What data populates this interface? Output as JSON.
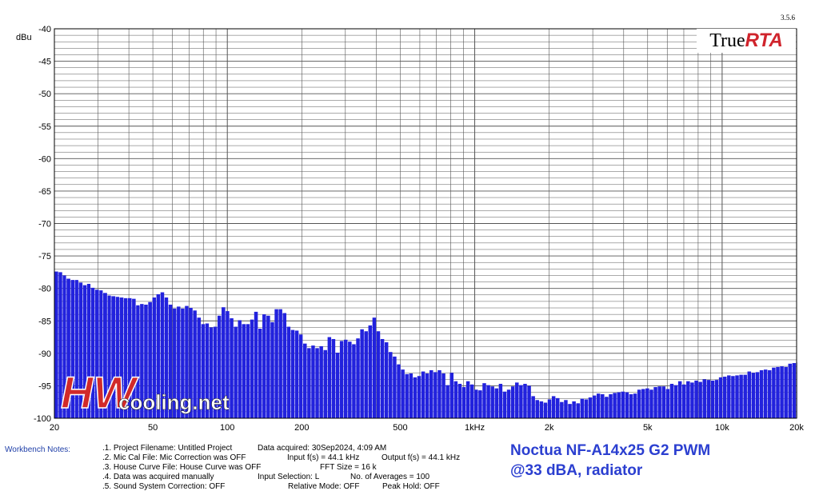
{
  "app": {
    "version": "3.5.6",
    "brand_true": "True",
    "brand_rta": "RTA"
  },
  "watermark": {
    "text_hw": "HW",
    "text_site": "cooling.net"
  },
  "headline": {
    "line1": "Noctua NF-A14x25 G2 PWM",
    "line2": "@33 dBA, radiator"
  },
  "workbench": {
    "label": "Workbench Notes:",
    "lines": [
      {
        "left": ".1. Project Filename: Untitled Project",
        "mid": "Data acquired: 30Sep2024, 4:09 AM",
        "right": ""
      },
      {
        "left": ".2. Mic Cal File: Mic Correction was OFF",
        "mid": "Input f(s) = 44.1 kHz",
        "right": "Output f(s) = 44.1 kHz"
      },
      {
        "left": ".3. House Curve File: House Curve was OFF",
        "mid": "FFT Size = 16 k",
        "right": ""
      },
      {
        "left": ".4. Data was acquired manually",
        "mid": "Input Selection: L",
        "right": "No. of Averages = 100"
      },
      {
        "left": ".5. Sound System Correction: OFF",
        "mid": "Relative Mode:  OFF",
        "right": "Peak Hold: OFF"
      }
    ]
  },
  "colors": {
    "bars": "#2222dd",
    "grid": "#555555",
    "headline": "#2b3fd0",
    "workbench_label": "#1f3fa8",
    "brand_rta": "#d0242c"
  },
  "chart_data": {
    "type": "bar",
    "ylabel": "dBu",
    "xlabel": "",
    "x_scale": "log",
    "xlim": [
      20,
      20000
    ],
    "ylim": [
      -100,
      -40
    ],
    "grid": true,
    "y_ticks": [
      "-40",
      "-45",
      "-50",
      "-55",
      "-60",
      "-65",
      "-70",
      "-75",
      "-80",
      "-85",
      "-90",
      "-95",
      "-100"
    ],
    "x_tick_labels": [
      {
        "f": 20,
        "label": "20"
      },
      {
        "f": 50,
        "label": "50"
      },
      {
        "f": 100,
        "label": "100"
      },
      {
        "f": 200,
        "label": "200"
      },
      {
        "f": 500,
        "label": "500"
      },
      {
        "f": 1000,
        "label": "1kHz"
      },
      {
        "f": 2000,
        "label": "2k"
      },
      {
        "f": 5000,
        "label": "5k"
      },
      {
        "f": 10000,
        "label": "10k"
      },
      {
        "f": 20000,
        "label": "20k"
      }
    ],
    "points": [
      [
        20.0,
        -77.4
      ],
      [
        20.8,
        -77.5
      ],
      [
        21.6,
        -78.0
      ],
      [
        22.4,
        -78.5
      ],
      [
        23.3,
        -78.7
      ],
      [
        24.2,
        -78.7
      ],
      [
        25.1,
        -79.1
      ],
      [
        26.1,
        -79.5
      ],
      [
        27.1,
        -79.3
      ],
      [
        28.1,
        -79.9
      ],
      [
        29.2,
        -80.2
      ],
      [
        30.4,
        -80.3
      ],
      [
        31.5,
        -80.7
      ],
      [
        32.8,
        -81.1
      ],
      [
        34.0,
        -81.2
      ],
      [
        35.4,
        -81.3
      ],
      [
        36.7,
        -81.4
      ],
      [
        38.2,
        -81.5
      ],
      [
        39.6,
        -81.5
      ],
      [
        41.2,
        -81.6
      ],
      [
        42.8,
        -82.6
      ],
      [
        44.4,
        -82.4
      ],
      [
        46.1,
        -82.5
      ],
      [
        47.9,
        -82.1
      ],
      [
        49.8,
        -81.4
      ],
      [
        51.7,
        -80.9
      ],
      [
        53.7,
        -80.6
      ],
      [
        55.8,
        -81.4
      ],
      [
        57.9,
        -82.5
      ],
      [
        60.2,
        -83.1
      ],
      [
        62.5,
        -82.8
      ],
      [
        64.9,
        -83.1
      ],
      [
        67.4,
        -82.7
      ],
      [
        70.0,
        -83.0
      ],
      [
        72.7,
        -83.4
      ],
      [
        75.5,
        -84.5
      ],
      [
        78.5,
        -85.5
      ],
      [
        81.5,
        -85.4
      ],
      [
        84.6,
        -86.0
      ],
      [
        87.9,
        -85.9
      ],
      [
        91.3,
        -84.2
      ],
      [
        94.8,
        -82.9
      ],
      [
        98.5,
        -83.5
      ],
      [
        102.3,
        -84.6
      ],
      [
        106.3,
        -85.9
      ],
      [
        110.4,
        -84.9
      ],
      [
        114.6,
        -85.5
      ],
      [
        119.1,
        -85.5
      ],
      [
        123.7,
        -84.8
      ],
      [
        128.4,
        -83.6
      ],
      [
        133.4,
        -86.2
      ],
      [
        138.6,
        -84.0
      ],
      [
        143.9,
        -84.2
      ],
      [
        149.5,
        -85.2
      ],
      [
        155.3,
        -83.2
      ],
      [
        161.3,
        -83.2
      ],
      [
        167.5,
        -83.8
      ],
      [
        174.0,
        -85.9
      ],
      [
        180.7,
        -86.4
      ],
      [
        187.7,
        -86.5
      ],
      [
        195.0,
        -87.1
      ],
      [
        202.5,
        -88.5
      ],
      [
        210.4,
        -89.2
      ],
      [
        218.5,
        -88.8
      ],
      [
        226.9,
        -89.2
      ],
      [
        235.7,
        -88.9
      ],
      [
        244.8,
        -89.5
      ],
      [
        254.3,
        -87.5
      ],
      [
        264.1,
        -87.8
      ],
      [
        274.3,
        -89.9
      ],
      [
        285.0,
        -88.1
      ],
      [
        296.0,
        -87.9
      ],
      [
        307.4,
        -88.2
      ],
      [
        319.3,
        -88.6
      ],
      [
        331.7,
        -87.7
      ],
      [
        344.5,
        -86.3
      ],
      [
        357.8,
        -86.6
      ],
      [
        371.6,
        -85.7
      ],
      [
        386.0,
        -84.5
      ],
      [
        400.9,
        -86.6
      ],
      [
        416.4,
        -87.8
      ],
      [
        432.5,
        -88.3
      ],
      [
        449.2,
        -89.8
      ],
      [
        466.6,
        -90.5
      ],
      [
        484.7,
        -91.7
      ],
      [
        503.4,
        -92.5
      ],
      [
        522.9,
        -93.2
      ],
      [
        543.1,
        -93.1
      ],
      [
        564.1,
        -93.7
      ],
      [
        585.9,
        -93.5
      ],
      [
        608.5,
        -92.8
      ],
      [
        632.1,
        -93.1
      ],
      [
        656.5,
        -92.6
      ],
      [
        681.9,
        -92.9
      ],
      [
        708.3,
        -92.6
      ],
      [
        735.6,
        -93.1
      ],
      [
        764.1,
        -94.9
      ],
      [
        793.6,
        -93.0
      ],
      [
        824.3,
        -94.3
      ],
      [
        856.2,
        -94.7
      ],
      [
        889.3,
        -95.2
      ],
      [
        923.6,
        -94.3
      ],
      [
        959.3,
        -94.8
      ],
      [
        996.4,
        -95.6
      ],
      [
        1034.9,
        -95.7
      ],
      [
        1074.9,
        -94.6
      ],
      [
        1116.5,
        -94.9
      ],
      [
        1159.7,
        -95.1
      ],
      [
        1204.5,
        -95.4
      ],
      [
        1251.1,
        -94.7
      ],
      [
        1299.4,
        -95.9
      ],
      [
        1349.7,
        -95.6
      ],
      [
        1401.9,
        -95.1
      ],
      [
        1456.1,
        -94.5
      ],
      [
        1512.4,
        -94.9
      ],
      [
        1570.9,
        -94.7
      ],
      [
        1631.6,
        -95.0
      ],
      [
        1694.7,
        -96.6
      ],
      [
        1760.2,
        -97.2
      ],
      [
        1828.3,
        -97.4
      ],
      [
        1899.0,
        -97.6
      ],
      [
        1972.4,
        -97.1
      ],
      [
        2048.7,
        -96.6
      ],
      [
        2127.9,
        -96.9
      ],
      [
        2210.2,
        -97.5
      ],
      [
        2295.7,
        -97.2
      ],
      [
        2384.4,
        -97.8
      ],
      [
        2476.6,
        -97.4
      ],
      [
        2572.4,
        -97.7
      ],
      [
        2671.9,
        -97.0
      ],
      [
        2775.2,
        -97.1
      ],
      [
        2882.5,
        -96.8
      ],
      [
        2993.9,
        -96.5
      ],
      [
        3109.7,
        -96.2
      ],
      [
        3230.0,
        -96.3
      ],
      [
        3354.8,
        -96.7
      ],
      [
        3484.5,
        -96.3
      ],
      [
        3619.3,
        -96.1
      ],
      [
        3759.2,
        -96.0
      ],
      [
        3904.6,
        -95.9
      ],
      [
        4055.6,
        -96.0
      ],
      [
        4212.4,
        -96.3
      ],
      [
        4375.3,
        -96.2
      ],
      [
        4544.5,
        -95.6
      ],
      [
        4720.2,
        -95.5
      ],
      [
        4902.7,
        -95.4
      ],
      [
        5092.3,
        -95.6
      ],
      [
        5289.2,
        -95.2
      ],
      [
        5493.7,
        -95.1
      ],
      [
        5706.2,
        -95.1
      ],
      [
        5926.8,
        -95.5
      ],
      [
        6156.0,
        -94.7
      ],
      [
        6394.1,
        -94.9
      ],
      [
        6641.3,
        -94.3
      ],
      [
        6898.1,
        -94.8
      ],
      [
        7164.9,
        -94.3
      ],
      [
        7441.9,
        -94.5
      ],
      [
        7729.7,
        -94.2
      ],
      [
        8028.6,
        -94.4
      ],
      [
        8339.1,
        -94.0
      ],
      [
        8661.5,
        -94.1
      ],
      [
        8996.5,
        -94.2
      ],
      [
        9344.3,
        -94.1
      ],
      [
        9705.7,
        -93.7
      ],
      [
        10081.0,
        -93.6
      ],
      [
        10470.8,
        -93.4
      ],
      [
        10875.7,
        -93.5
      ],
      [
        11296.3,
        -93.4
      ],
      [
        11733.1,
        -93.3
      ],
      [
        12186.8,
        -93.3
      ],
      [
        12658.0,
        -92.8
      ],
      [
        13147.5,
        -93.0
      ],
      [
        13655.9,
        -92.9
      ],
      [
        14184.0,
        -92.6
      ],
      [
        14732.5,
        -92.5
      ],
      [
        15302.2,
        -92.6
      ],
      [
        15893.9,
        -92.2
      ],
      [
        16508.5,
        -92.1
      ],
      [
        17146.9,
        -92.0
      ],
      [
        17810.0,
        -92.1
      ],
      [
        18498.7,
        -91.6
      ],
      [
        19214.1,
        -91.5
      ],
      [
        19957.1,
        -91.4
      ]
    ]
  }
}
